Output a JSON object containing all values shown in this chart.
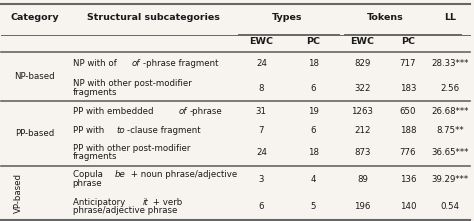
{
  "col_headers_top": [
    "Category",
    "Structural subcategories",
    "Types",
    "",
    "Tokens",
    "",
    "LL"
  ],
  "col_headers_sub": [
    "",
    "",
    "EWC",
    "PC",
    "EWC",
    "PC",
    ""
  ],
  "rows": [
    {
      "category": "NP-based",
      "sub_parts": [
        [
          "NP with of ",
          "of",
          "-phrase fragment"
        ]
      ],
      "types_ewc": "24",
      "types_pc": "18",
      "tokens_ewc": "829",
      "tokens_pc": "717",
      "ll": "28.33***"
    },
    {
      "category": "",
      "sub_parts": [
        [
          "NP with other post-modifier\nfragments"
        ]
      ],
      "types_ewc": "8",
      "types_pc": "6",
      "tokens_ewc": "322",
      "tokens_pc": "183",
      "ll": "2.56"
    },
    {
      "category": "PP-based",
      "sub_parts": [
        [
          "PP with embedded ",
          "of",
          "-phrase"
        ]
      ],
      "types_ewc": "31",
      "types_pc": "19",
      "tokens_ewc": "1263",
      "tokens_pc": "650",
      "ll": "26.68***"
    },
    {
      "category": "",
      "sub_parts": [
        [
          "PP with ",
          "to",
          "-clause fragment"
        ]
      ],
      "types_ewc": "7",
      "types_pc": "6",
      "tokens_ewc": "212",
      "tokens_pc": "188",
      "ll": "8.75**"
    },
    {
      "category": "",
      "sub_parts": [
        [
          "PP with other post-modifier\nfragments"
        ]
      ],
      "types_ewc": "24",
      "types_pc": "18",
      "tokens_ewc": "873",
      "tokens_pc": "776",
      "ll": "36.65***"
    },
    {
      "category": "VP-based",
      "sub_parts": [
        [
          "Copula ",
          "be",
          " + noun phrase/adjective\nphrase"
        ]
      ],
      "types_ewc": "3",
      "types_pc": "4",
      "tokens_ewc": "89",
      "tokens_pc": "136",
      "ll": "39.29***"
    },
    {
      "category": "",
      "sub_parts": [
        [
          "Anticipatory ",
          "it",
          " + verb\nphrase/adjective phrase"
        ]
      ],
      "types_ewc": "6",
      "types_pc": "5",
      "tokens_ewc": "196",
      "tokens_pc": "140",
      "ll": "0.54"
    }
  ],
  "bg_color": "#f7f4ef",
  "text_color": "#1a1a1a",
  "line_color": "#666666",
  "group_sizes": [
    2,
    3,
    2
  ],
  "group_labels": [
    "NP-based",
    "PP-based",
    "VP-based"
  ],
  "vp_rotated": true
}
